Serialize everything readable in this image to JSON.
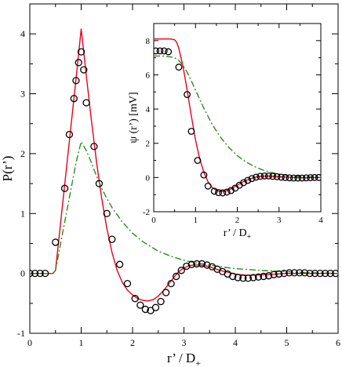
{
  "chart_data": [
    {
      "type": "line",
      "xlabel": "r’ / D+",
      "ylabel": "P(r’)",
      "xlim": [
        0,
        6
      ],
      "ylim": [
        -1,
        4.5
      ],
      "xticks": [
        "0",
        "1",
        "2",
        "3",
        "4",
        "5",
        "6"
      ],
      "yticks": [
        "-1",
        "0",
        "1",
        "2",
        "3",
        "4"
      ],
      "series": [
        {
          "style": "solid",
          "color": "#e8001c",
          "x": [
            0,
            0.45,
            0.5,
            0.6,
            0.7,
            0.8,
            0.9,
            1.0,
            1.05,
            1.1,
            1.2,
            1.3,
            1.4,
            1.5,
            1.6,
            1.7,
            1.8,
            1.9,
            2.0,
            2.1,
            2.2,
            2.3,
            2.4,
            2.5,
            2.6,
            2.7,
            2.8,
            2.9,
            3.0,
            3.1,
            3.2,
            3.3,
            3.4,
            3.5,
            3.6,
            3.7,
            3.8,
            3.9,
            4.0,
            4.2,
            4.4,
            4.6,
            4.8,
            5.0,
            5.2,
            5.5,
            5.8,
            6.0
          ],
          "y": [
            0,
            0,
            0.05,
            0.85,
            1.65,
            2.45,
            3.25,
            4.08,
            3.7,
            3.3,
            2.55,
            1.85,
            1.25,
            0.75,
            0.35,
            0.05,
            -0.15,
            -0.28,
            -0.36,
            -0.42,
            -0.45,
            -0.46,
            -0.44,
            -0.38,
            -0.29,
            -0.18,
            -0.07,
            0.03,
            0.09,
            0.13,
            0.14,
            0.14,
            0.13,
            0.11,
            0.08,
            0.05,
            0.03,
            0.01,
            -0.01,
            -0.03,
            -0.03,
            -0.02,
            -0.01,
            0.0,
            0.0,
            0.0,
            0.0,
            0.0
          ]
        },
        {
          "style": "dash-dot",
          "color": "#2e8b1e",
          "x": [
            0,
            0.45,
            0.5,
            0.6,
            0.7,
            0.8,
            0.9,
            1.0,
            1.1,
            1.2,
            1.3,
            1.4,
            1.5,
            1.6,
            1.8,
            2.0,
            2.2,
            2.5,
            2.8,
            3.0,
            3.2,
            3.5,
            3.8,
            4.0,
            4.5,
            5.0,
            5.5,
            6.0
          ],
          "y": [
            0,
            0,
            0.05,
            0.5,
            0.95,
            1.4,
            1.85,
            2.2,
            2.05,
            1.85,
            1.62,
            1.42,
            1.25,
            1.1,
            0.86,
            0.67,
            0.53,
            0.37,
            0.27,
            0.22,
            0.18,
            0.14,
            0.1,
            0.08,
            0.05,
            0.03,
            0.01,
            0.0
          ]
        },
        {
          "style": "markers",
          "marker": "circle",
          "x": [
            0.0,
            0.1,
            0.2,
            0.3,
            0.5,
            0.68,
            0.77,
            0.86,
            0.9,
            0.95,
            1.0,
            1.05,
            1.1,
            1.25,
            1.35,
            1.5,
            1.6,
            1.75,
            1.9,
            2.05,
            2.15,
            2.25,
            2.35,
            2.45,
            2.55,
            2.65,
            2.75,
            2.85,
            2.95,
            3.05,
            3.15,
            3.25,
            3.35,
            3.45,
            3.55,
            3.65,
            3.75,
            3.85,
            3.95,
            4.05,
            4.15,
            4.25,
            4.35,
            4.45,
            4.55,
            4.65,
            4.75,
            4.85,
            4.95,
            5.05,
            5.15,
            5.25,
            5.35,
            5.45,
            5.55,
            5.65,
            5.75,
            5.85,
            5.95
          ],
          "y": [
            0.0,
            0.0,
            0.0,
            0.0,
            0.52,
            1.42,
            2.32,
            2.92,
            3.22,
            3.52,
            3.7,
            3.4,
            2.85,
            2.12,
            1.5,
            1.0,
            0.57,
            0.15,
            -0.17,
            -0.42,
            -0.53,
            -0.6,
            -0.62,
            -0.57,
            -0.47,
            -0.32,
            -0.17,
            -0.05,
            0.05,
            0.12,
            0.15,
            0.16,
            0.16,
            0.14,
            0.11,
            0.07,
            0.03,
            -0.01,
            -0.05,
            -0.07,
            -0.08,
            -0.08,
            -0.07,
            -0.06,
            -0.05,
            -0.04,
            -0.02,
            -0.01,
            0.0,
            0.01,
            0.01,
            0.01,
            0.01,
            0.0,
            0.0,
            0.0,
            0.0,
            0.0,
            0.0
          ]
        }
      ]
    },
    {
      "type": "line",
      "xlabel": "r’ / D+",
      "ylabel": "ψ (r’) [mV]",
      "xlim": [
        0,
        4
      ],
      "ylim": [
        -2,
        9
      ],
      "xticks": [
        "0",
        "1",
        "2",
        "3",
        "4"
      ],
      "yticks": [
        "-2",
        "0",
        "2",
        "4",
        "6",
        "8"
      ],
      "series": [
        {
          "style": "solid",
          "color": "#e8001c",
          "x": [
            0,
            0.2,
            0.4,
            0.5,
            0.55,
            0.6,
            0.7,
            0.8,
            0.9,
            1.0,
            1.1,
            1.2,
            1.3,
            1.4,
            1.5,
            1.6,
            1.7,
            1.8,
            1.9,
            2.0,
            2.1,
            2.2,
            2.3,
            2.4,
            2.5,
            2.6,
            2.7,
            2.8,
            3.0,
            3.2,
            3.4,
            3.6,
            3.8,
            4.0
          ],
          "y": [
            8.1,
            8.1,
            8.1,
            8.05,
            7.9,
            7.55,
            6.5,
            5.1,
            3.6,
            2.2,
            1.1,
            0.3,
            -0.25,
            -0.58,
            -0.76,
            -0.82,
            -0.8,
            -0.72,
            -0.6,
            -0.45,
            -0.3,
            -0.18,
            -0.08,
            0.0,
            0.05,
            0.08,
            0.09,
            0.08,
            0.05,
            0.02,
            0.0,
            -0.01,
            -0.01,
            0.0
          ]
        },
        {
          "style": "dash-dot",
          "color": "#2e8b1e",
          "x": [
            0,
            0.2,
            0.4,
            0.5,
            0.6,
            0.7,
            0.8,
            0.9,
            1.0,
            1.2,
            1.4,
            1.6,
            1.8,
            2.0,
            2.2,
            2.4,
            2.6,
            2.8,
            3.0,
            3.2,
            3.5,
            3.8,
            4.0
          ],
          "y": [
            7.1,
            7.1,
            7.05,
            7.0,
            6.85,
            6.55,
            6.15,
            5.65,
            5.1,
            4.05,
            3.1,
            2.35,
            1.75,
            1.28,
            0.92,
            0.65,
            0.45,
            0.3,
            0.2,
            0.13,
            0.07,
            0.03,
            0.02
          ]
        },
        {
          "style": "markers",
          "marker": "circle",
          "x": [
            0.05,
            0.15,
            0.25,
            0.35,
            0.6,
            0.8,
            0.9,
            1.05,
            1.2,
            1.3,
            1.45,
            1.55,
            1.65,
            1.75,
            1.85,
            1.95,
            2.05,
            2.15,
            2.25,
            2.35,
            2.45,
            2.55,
            2.65,
            2.75,
            2.85,
            2.95,
            3.05,
            3.15,
            3.25,
            3.35,
            3.45,
            3.55,
            3.65,
            3.75,
            3.85,
            3.95
          ],
          "y": [
            7.4,
            7.4,
            7.4,
            7.35,
            6.45,
            4.85,
            2.7,
            1.0,
            0.15,
            -0.5,
            -0.8,
            -0.88,
            -0.9,
            -0.85,
            -0.76,
            -0.62,
            -0.45,
            -0.3,
            -0.17,
            -0.06,
            0.02,
            0.07,
            0.09,
            0.09,
            0.07,
            0.05,
            0.02,
            0.0,
            -0.02,
            -0.03,
            -0.03,
            -0.03,
            -0.02,
            -0.01,
            0.0,
            0.0
          ]
        }
      ]
    }
  ]
}
